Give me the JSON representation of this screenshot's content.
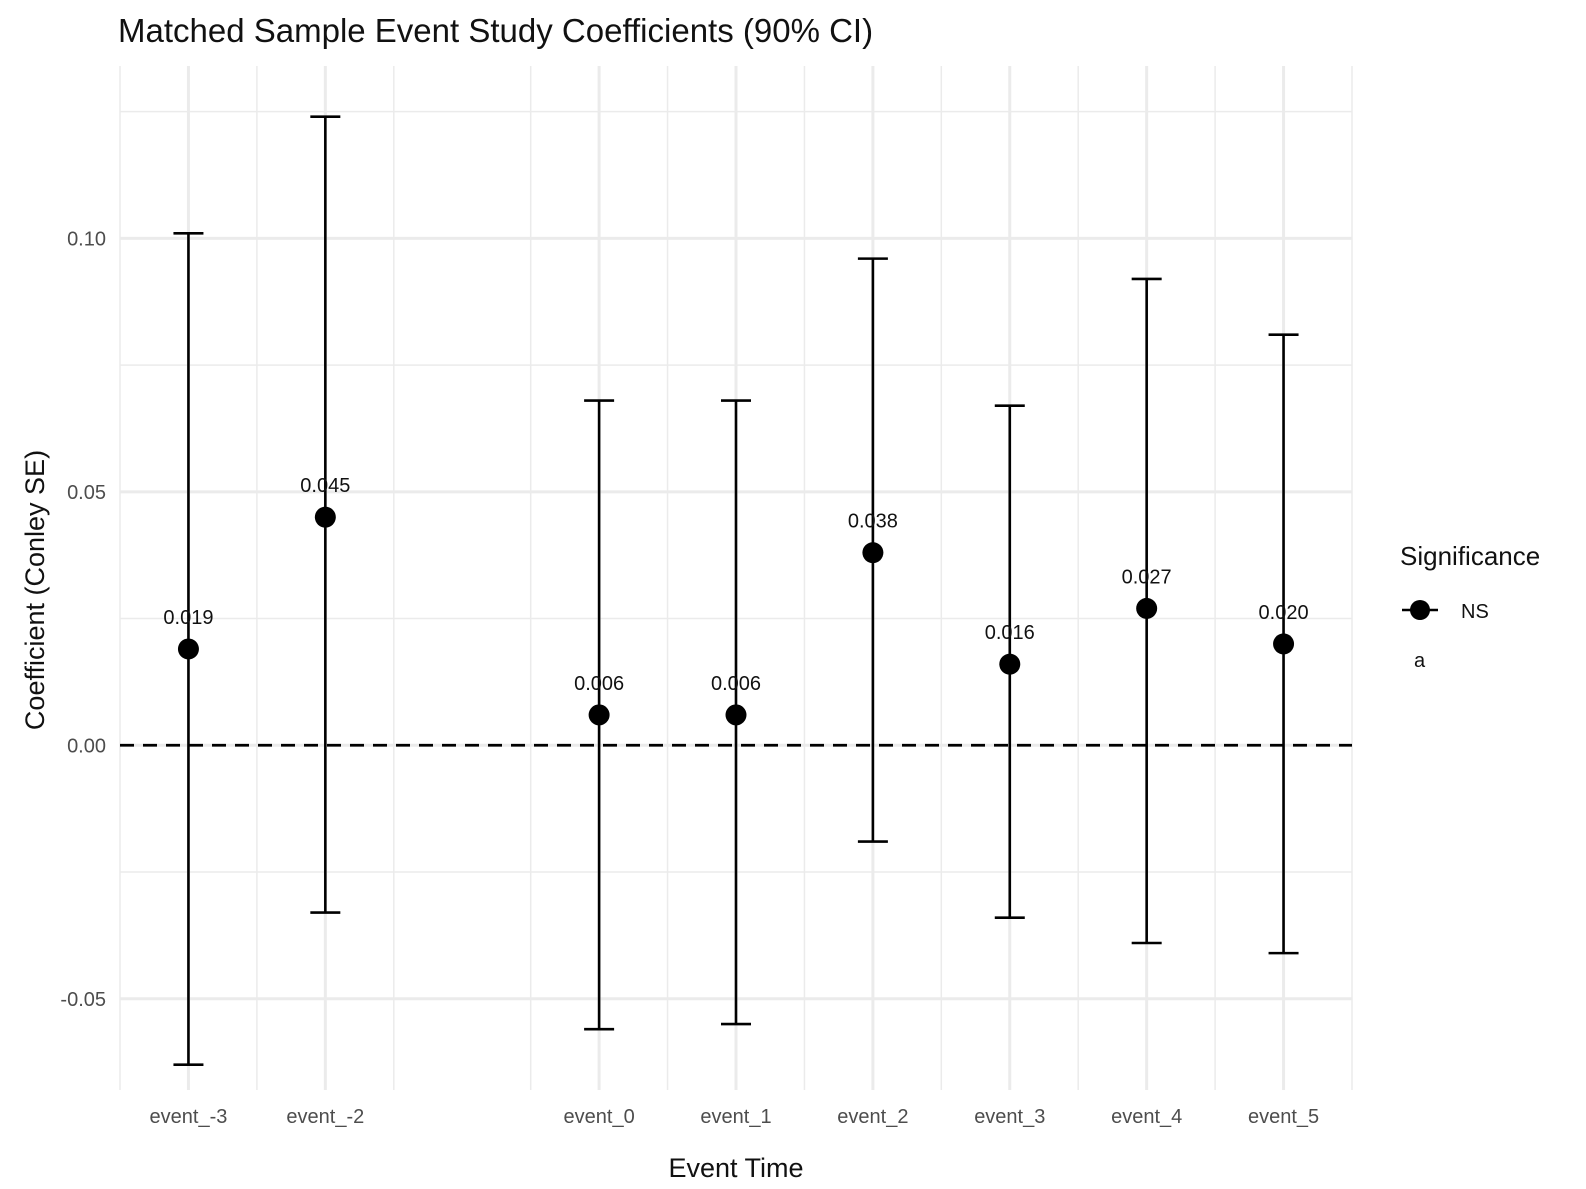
{
  "chart_data": {
    "type": "scatter",
    "title": "Matched Sample Event Study Coefficients (90% CI)",
    "xlabel": "Event Time",
    "ylabel": "Coefficient (Conley SE)",
    "x_positions": [
      -3,
      -2,
      -1,
      0,
      1,
      2,
      3,
      4,
      5
    ],
    "categories": [
      "event_-3",
      "event_-2",
      "event_0",
      "event_1",
      "event_2",
      "event_3",
      "event_4",
      "event_5"
    ],
    "x_values": [
      -3,
      -2,
      0,
      1,
      2,
      3,
      4,
      5
    ],
    "values": [
      0.019,
      0.045,
      0.006,
      0.006,
      0.038,
      0.016,
      0.027,
      0.02
    ],
    "value_labels": [
      "0.019",
      "0.045",
      "0.006",
      "0.006",
      "0.038",
      "0.016",
      "0.027",
      "0.020"
    ],
    "ci_low": [
      -0.063,
      -0.033,
      -0.056,
      -0.055,
      -0.019,
      -0.034,
      -0.039,
      -0.041
    ],
    "ci_high": [
      0.101,
      0.124,
      0.068,
      0.068,
      0.096,
      0.067,
      0.092,
      0.081
    ],
    "significance": [
      "NS",
      "NS",
      "NS",
      "NS",
      "NS",
      "NS",
      "NS",
      "NS"
    ],
    "ylim": [
      -0.068,
      0.134
    ],
    "y_ticks": [
      -0.05,
      0.0,
      0.05,
      0.1
    ],
    "y_tick_labels": [
      "-0.05",
      "0.00",
      "0.05",
      "0.10"
    ],
    "y_minor_ticks": [
      -0.025,
      0.025,
      0.075,
      0.125
    ],
    "reference_line": {
      "y": 0,
      "style": "dashed"
    },
    "grid": true,
    "legend": {
      "title": "Significance",
      "placement": "right",
      "entries": [
        {
          "label": "NS"
        }
      ],
      "extra_label": "a"
    },
    "colors": {
      "point": "#000000",
      "grid": "#ebebeb",
      "reference": "#000000"
    }
  }
}
